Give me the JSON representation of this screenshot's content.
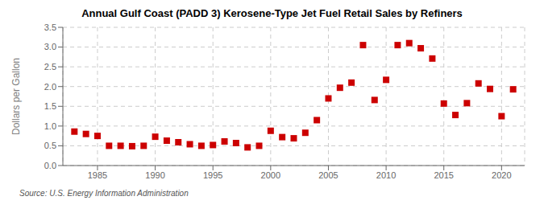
{
  "chart_data": {
    "type": "scatter",
    "title": "Annual Gulf Coast (PADD 3) Kerosene-Type Jet Fuel Retail Sales by Refiners",
    "ylabel": "Dollars per Gallon",
    "annotation": "Source: U.S. Energy Information Administration",
    "x": [
      1983,
      1984,
      1985,
      1986,
      1987,
      1988,
      1989,
      1990,
      1991,
      1992,
      1993,
      1994,
      1995,
      1996,
      1997,
      1998,
      1999,
      2000,
      2001,
      2002,
      2003,
      2004,
      2005,
      2006,
      2007,
      2008,
      2009,
      2010,
      2011,
      2012,
      2013,
      2014,
      2015,
      2016,
      2017,
      2018,
      2019,
      2020,
      2021
    ],
    "values": [
      0.86,
      0.8,
      0.75,
      0.5,
      0.5,
      0.49,
      0.5,
      0.73,
      0.63,
      0.59,
      0.54,
      0.5,
      0.52,
      0.61,
      0.57,
      0.46,
      0.5,
      0.88,
      0.72,
      0.69,
      0.83,
      1.15,
      1.7,
      1.97,
      2.1,
      3.05,
      1.66,
      2.17,
      3.05,
      3.1,
      2.97,
      2.71,
      1.57,
      1.28,
      1.58,
      2.08,
      1.94,
      1.25,
      1.93
    ],
    "color": "#cc0000",
    "marker": "square",
    "xlim": [
      1982,
      2022
    ],
    "ylim": [
      0.0,
      3.5
    ],
    "xticks": [
      1985,
      1990,
      1995,
      2000,
      2005,
      2010,
      2015,
      2020
    ],
    "yticks": [
      {
        "value": 0.0,
        "label": "0.0"
      },
      0.5,
      {
        "value": 1.0,
        "label": "1.0"
      },
      1.5,
      {
        "value": 2.0,
        "label": "2.0"
      },
      2.5,
      {
        "value": 3.0,
        "label": "3.0"
      },
      3.5
    ],
    "grid": true
  }
}
